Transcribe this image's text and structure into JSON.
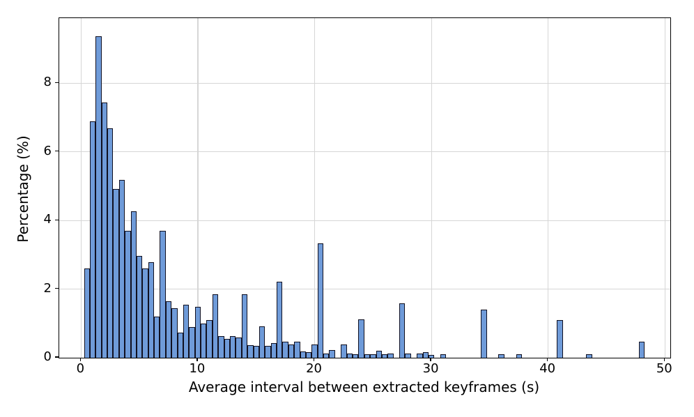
{
  "chart_data": {
    "type": "bar",
    "subtype": "histogram",
    "title": "",
    "xlabel": "Average interval between extracted keyframes (s)",
    "ylabel": "Percentage (%)",
    "bin_width": 0.5,
    "bars_note": "pairs of [bin_center_seconds, percentage]; bins not listed have value 0",
    "bars": [
      [
        0.5,
        2.6
      ],
      [
        1.0,
        6.89
      ],
      [
        1.5,
        9.37
      ],
      [
        2.0,
        7.44
      ],
      [
        2.5,
        6.69
      ],
      [
        3.0,
        4.91
      ],
      [
        3.5,
        5.18
      ],
      [
        4.0,
        3.71
      ],
      [
        4.5,
        4.27
      ],
      [
        5.0,
        2.96
      ],
      [
        5.5,
        2.6
      ],
      [
        6.0,
        2.78
      ],
      [
        6.5,
        1.2
      ],
      [
        7.0,
        3.71
      ],
      [
        7.5,
        1.65
      ],
      [
        8.0,
        1.45
      ],
      [
        8.5,
        0.73
      ],
      [
        9.0,
        1.55
      ],
      [
        9.5,
        0.9
      ],
      [
        10.0,
        1.48
      ],
      [
        10.5,
        1.0
      ],
      [
        11.0,
        1.1
      ],
      [
        11.5,
        1.85
      ],
      [
        12.0,
        0.63
      ],
      [
        12.5,
        0.55
      ],
      [
        13.0,
        0.63
      ],
      [
        13.5,
        0.6
      ],
      [
        14.0,
        1.85
      ],
      [
        14.5,
        0.36
      ],
      [
        15.0,
        0.35
      ],
      [
        15.5,
        0.92
      ],
      [
        16.0,
        0.35
      ],
      [
        16.5,
        0.42
      ],
      [
        17.0,
        2.22
      ],
      [
        17.5,
        0.46
      ],
      [
        18.0,
        0.38
      ],
      [
        18.5,
        0.46
      ],
      [
        19.0,
        0.19
      ],
      [
        19.5,
        0.17
      ],
      [
        20.0,
        0.39
      ],
      [
        20.5,
        3.34
      ],
      [
        21.0,
        0.12
      ],
      [
        21.5,
        0.22
      ],
      [
        22.5,
        0.38
      ],
      [
        23.0,
        0.12
      ],
      [
        23.5,
        0.1
      ],
      [
        24.0,
        1.12
      ],
      [
        24.5,
        0.1
      ],
      [
        25.0,
        0.1
      ],
      [
        25.5,
        0.2
      ],
      [
        26.0,
        0.1
      ],
      [
        26.5,
        0.12
      ],
      [
        27.5,
        1.58
      ],
      [
        28.0,
        0.12
      ],
      [
        29.0,
        0.12
      ],
      [
        29.5,
        0.17
      ],
      [
        30.0,
        0.08
      ],
      [
        31.0,
        0.1
      ],
      [
        34.5,
        1.4
      ],
      [
        36.0,
        0.1
      ],
      [
        37.5,
        0.1
      ],
      [
        41.0,
        1.1
      ],
      [
        43.5,
        0.1
      ],
      [
        48.0,
        0.46
      ]
    ],
    "x_ticks": [
      0,
      10,
      20,
      30,
      40,
      50
    ],
    "y_ticks": [
      0,
      2,
      4,
      6,
      8
    ],
    "xlim": [
      -1.87,
      50.46
    ],
    "ylim": [
      0,
      9.9
    ],
    "grid": true,
    "legend": "none",
    "colors": {
      "bar_fill": "#6F9BD9",
      "bar_edge": "#101020",
      "grid": "#d6d6d6",
      "spine": "#000000",
      "text": "#000000",
      "background": "#ffffff"
    }
  }
}
